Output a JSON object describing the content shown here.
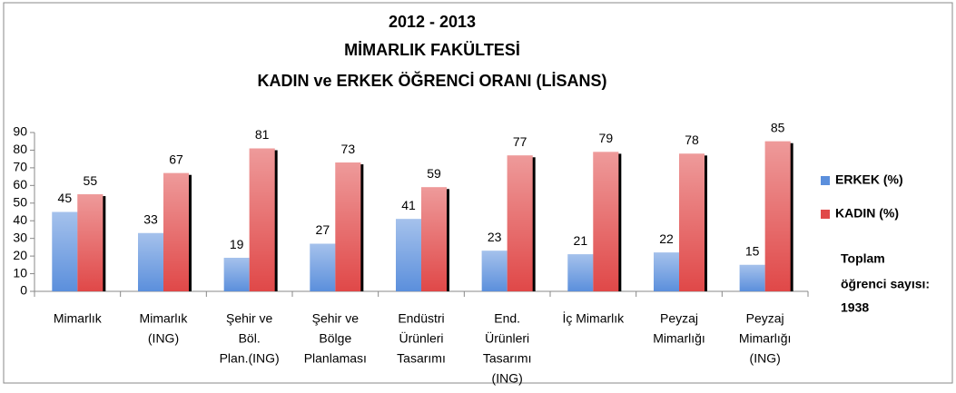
{
  "chart_data": {
    "type": "bar",
    "title": [
      "2012 - 2013",
      "MİMARLIK FAKÜLTESİ",
      "KADIN ve ERKEK ÖĞRENCİ ORANI (LİSANS)"
    ],
    "categories": [
      [
        "Mimarlık"
      ],
      [
        "Mimarlık",
        "(ING)"
      ],
      [
        "Şehir ve",
        "Böl.",
        "Plan.(ING)"
      ],
      [
        "Şehir ve",
        "Bölge",
        "Planlaması"
      ],
      [
        "Endüstri",
        "Ürünleri",
        "Tasarımı"
      ],
      [
        "End.",
        "Ürünleri",
        "Tasarımı",
        "(ING)"
      ],
      [
        "İç Mimarlık"
      ],
      [
        "Peyzaj",
        "Mimarlığı"
      ],
      [
        "Peyzaj",
        "Mimarlığı",
        "(ING)"
      ]
    ],
    "series": [
      {
        "name": "ERKEK (%)",
        "color": "#5b8fdc",
        "values": [
          45,
          33,
          19,
          27,
          41,
          23,
          21,
          22,
          15
        ]
      },
      {
        "name": "KADIN (%)",
        "color": "#e04848",
        "values": [
          55,
          67,
          81,
          73,
          59,
          77,
          79,
          78,
          85
        ]
      }
    ],
    "ylim": [
      0,
      90
    ],
    "yticks": [
      0,
      10,
      20,
      30,
      40,
      50,
      60,
      70,
      80,
      90
    ],
    "grid": false,
    "legend": "right",
    "annotation": [
      "Toplam",
      "öğrenci sayısı:",
      "1938"
    ]
  }
}
